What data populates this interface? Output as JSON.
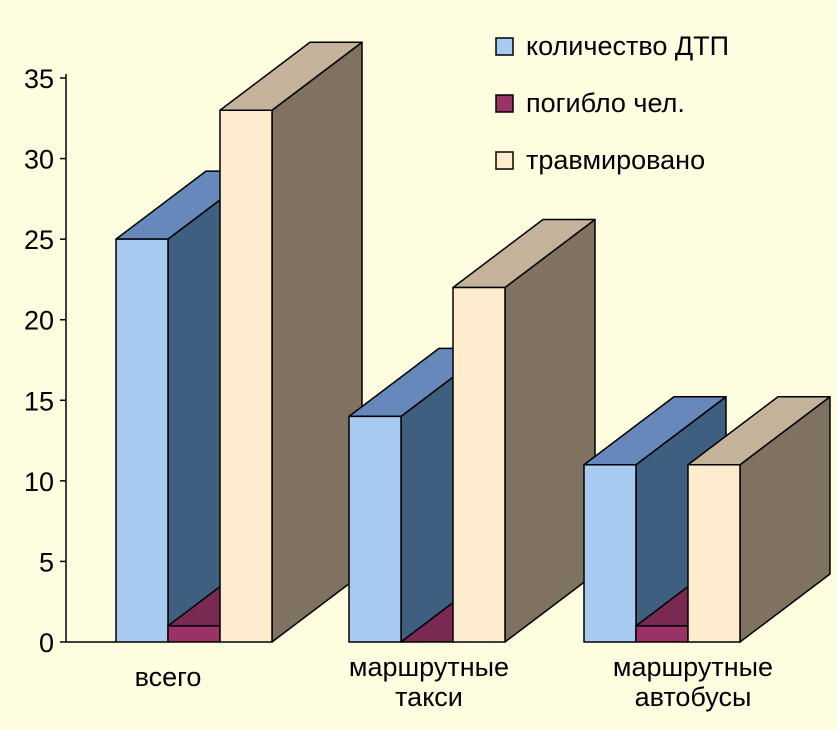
{
  "chart_data": {
    "type": "bar",
    "categories": [
      [
        "всего"
      ],
      [
        "маршрутные",
        "такси"
      ],
      [
        "маршрутные",
        "автобусы"
      ]
    ],
    "series": [
      {
        "name": "количество ДТП",
        "values": [
          25,
          14,
          11
        ],
        "colors": {
          "front": "#a6caf0",
          "side": "#3f5f80",
          "top": "#6688bb"
        }
      },
      {
        "name": "погибло чел.",
        "values": [
          1,
          0,
          1
        ],
        "colors": {
          "front": "#993366",
          "side": "#4d1a33",
          "top": "#7a2952"
        }
      },
      {
        "name": "травмировано",
        "values": [
          33,
          22,
          11
        ],
        "colors": {
          "front": "#ffeccf",
          "side": "#7f7261",
          "top": "#c4b39a"
        }
      }
    ],
    "yticks": [
      0,
      5,
      10,
      15,
      20,
      25,
      30,
      35
    ],
    "ylim": [
      0,
      35
    ],
    "legend_position": "top-right",
    "grid": false,
    "title": "",
    "xlabel": "",
    "ylabel": ""
  },
  "colors": {
    "background": "#fffde0",
    "axis": "#000000",
    "outline": "#000000"
  }
}
